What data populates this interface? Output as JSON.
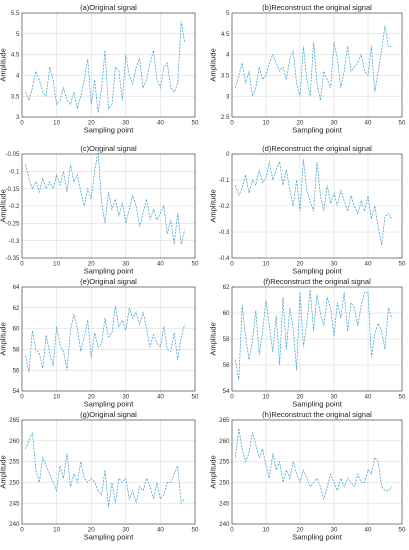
{
  "style": {
    "line_color": "#3d9fd0",
    "grid": true
  },
  "chart_data": [
    {
      "type": "line",
      "title": "(a)Original signal",
      "xlabel": "Sampling point",
      "ylabel": "Amplitude",
      "xlim": [
        0,
        50
      ],
      "ylim": [
        3,
        5.5
      ],
      "xticks": [
        "0",
        "10",
        "20",
        "30",
        "40",
        "50"
      ],
      "yticks": [
        "3",
        "3.5",
        "4",
        "4.5",
        "5",
        "5.5"
      ],
      "x": [
        1,
        2,
        3,
        4,
        5,
        6,
        7,
        8,
        9,
        10,
        11,
        12,
        13,
        14,
        15,
        16,
        17,
        18,
        19,
        20,
        21,
        22,
        23,
        24,
        25,
        26,
        27,
        28,
        29,
        30,
        31,
        32,
        33,
        34,
        35,
        36,
        37,
        38,
        39,
        40,
        41,
        42,
        43,
        44,
        45,
        46,
        47
      ],
      "y": [
        3.6,
        3.4,
        3.7,
        4.1,
        3.9,
        3.6,
        3.5,
        4.2,
        3.9,
        3.3,
        3.4,
        3.7,
        3.4,
        3.3,
        3.6,
        3.2,
        3.5,
        3.9,
        4.4,
        3.3,
        3.9,
        3.1,
        3.7,
        4.6,
        3.2,
        3.3,
        4.2,
        4.1,
        3.4,
        4.5,
        4.0,
        3.8,
        4.2,
        4.4,
        3.7,
        3.9,
        4.3,
        4.6,
        3.9,
        3.7,
        4.2,
        4.3,
        3.7,
        3.6,
        3.8,
        5.3,
        4.8
      ]
    },
    {
      "type": "line",
      "title": "(b)Reconstruct the original signal",
      "xlabel": "Sampling point",
      "ylabel": "Amplitude",
      "xlim": [
        0,
        50
      ],
      "ylim": [
        2.5,
        5
      ],
      "xticks": [
        "0",
        "10",
        "20",
        "30",
        "40",
        "50"
      ],
      "yticks": [
        "2.5",
        "3",
        "3.5",
        "4",
        "4.5",
        "5"
      ],
      "x": [
        1,
        2,
        3,
        4,
        5,
        6,
        7,
        8,
        9,
        10,
        11,
        12,
        13,
        14,
        15,
        16,
        17,
        18,
        19,
        20,
        21,
        22,
        23,
        24,
        25,
        26,
        27,
        28,
        29,
        30,
        31,
        32,
        33,
        34,
        35,
        36,
        37,
        38,
        39,
        40,
        41,
        42,
        43,
        44,
        45,
        46,
        47
      ],
      "y": [
        3.2,
        3.5,
        3.8,
        3.3,
        3.6,
        3.0,
        3.2,
        3.7,
        3.4,
        3.5,
        3.8,
        4.0,
        3.8,
        3.6,
        3.7,
        3.4,
        3.9,
        4.1,
        3.3,
        3.0,
        4.2,
        3.4,
        3.0,
        4.3,
        3.3,
        2.9,
        3.6,
        3.4,
        3.2,
        4.3,
        3.9,
        3.2,
        3.6,
        4.2,
        3.6,
        3.7,
        3.8,
        4.0,
        3.6,
        3.5,
        4.2,
        3.1,
        3.6,
        4.1,
        4.7,
        4.2,
        4.2
      ]
    },
    {
      "type": "line",
      "title": "(c)Original signal",
      "xlabel": "Sampling point",
      "ylabel": "Amplitude",
      "xlim": [
        0,
        50
      ],
      "ylim": [
        -0.35,
        -0.05
      ],
      "xticks": [
        "0",
        "10",
        "20",
        "30",
        "40",
        "50"
      ],
      "yticks": [
        "-0.35",
        "-0.3",
        "-0.25",
        "-0.2",
        "-0.15",
        "-0.1",
        "-0.05"
      ],
      "x": [
        1,
        2,
        3,
        4,
        5,
        6,
        7,
        8,
        9,
        10,
        11,
        12,
        13,
        14,
        15,
        16,
        17,
        18,
        19,
        20,
        21,
        22,
        23,
        24,
        25,
        26,
        27,
        28,
        29,
        30,
        31,
        32,
        33,
        34,
        35,
        36,
        37,
        38,
        39,
        40,
        41,
        42,
        43,
        44,
        45,
        46,
        47
      ],
      "y": [
        -0.08,
        -0.12,
        -0.15,
        -0.13,
        -0.16,
        -0.12,
        -0.15,
        -0.13,
        -0.15,
        -0.11,
        -0.14,
        -0.1,
        -0.16,
        -0.08,
        -0.13,
        -0.11,
        -0.16,
        -0.2,
        -0.15,
        -0.18,
        -0.1,
        -0.04,
        -0.19,
        -0.25,
        -0.16,
        -0.21,
        -0.18,
        -0.23,
        -0.19,
        -0.25,
        -0.21,
        -0.17,
        -0.2,
        -0.26,
        -0.22,
        -0.18,
        -0.24,
        -0.21,
        -0.24,
        -0.22,
        -0.2,
        -0.28,
        -0.24,
        -0.31,
        -0.22,
        -0.31,
        -0.27
      ]
    },
    {
      "type": "line",
      "title": "(d)Reconstruct the original signal",
      "xlabel": "Sampling point",
      "ylabel": "Amplitude",
      "xlim": [
        0,
        50
      ],
      "ylim": [
        -0.4,
        0
      ],
      "xticks": [
        "0",
        "10",
        "20",
        "30",
        "40",
        "50"
      ],
      "yticks": [
        "-0.4",
        "-0.3",
        "-0.2",
        "-0.1",
        "0"
      ],
      "x": [
        1,
        2,
        3,
        4,
        5,
        6,
        7,
        8,
        9,
        10,
        11,
        12,
        13,
        14,
        15,
        16,
        17,
        18,
        19,
        20,
        21,
        22,
        23,
        24,
        25,
        26,
        27,
        28,
        29,
        30,
        31,
        32,
        33,
        34,
        35,
        36,
        37,
        38,
        39,
        40,
        41,
        42,
        43,
        44,
        45,
        46,
        47
      ],
      "y": [
        -0.12,
        -0.16,
        -0.13,
        -0.08,
        -0.15,
        -0.1,
        -0.12,
        -0.06,
        -0.11,
        -0.09,
        -0.03,
        -0.1,
        -0.06,
        -0.03,
        -0.12,
        -0.06,
        -0.14,
        -0.2,
        -0.1,
        -0.22,
        -0.02,
        -0.14,
        -0.18,
        -0.22,
        -0.03,
        -0.16,
        -0.22,
        -0.12,
        -0.19,
        -0.15,
        -0.2,
        -0.14,
        -0.18,
        -0.22,
        -0.16,
        -0.2,
        -0.23,
        -0.18,
        -0.22,
        -0.16,
        -0.25,
        -0.2,
        -0.28,
        -0.35,
        -0.24,
        -0.23,
        -0.25
      ]
    },
    {
      "type": "line",
      "title": "(e)Original signal",
      "xlabel": "Sampling point",
      "ylabel": "Amplitude",
      "xlim": [
        0,
        50
      ],
      "ylim": [
        54,
        64
      ],
      "xticks": [
        "0",
        "10",
        "20",
        "30",
        "40",
        "50"
      ],
      "yticks": [
        "54",
        "56",
        "58",
        "60",
        "62",
        "64"
      ],
      "x": [
        1,
        2,
        3,
        4,
        5,
        6,
        7,
        8,
        9,
        10,
        11,
        12,
        13,
        14,
        15,
        16,
        17,
        18,
        19,
        20,
        21,
        22,
        23,
        24,
        25,
        26,
        27,
        28,
        29,
        30,
        31,
        32,
        33,
        34,
        35,
        36,
        37,
        38,
        39,
        40,
        41,
        42,
        43,
        44,
        45,
        46,
        47
      ],
      "y": [
        57.4,
        55.8,
        59.8,
        58.0,
        57.6,
        56.2,
        59.4,
        57.6,
        56.4,
        60.2,
        58.4,
        57.8,
        56.0,
        59.8,
        61.4,
        60.0,
        57.8,
        59.2,
        60.8,
        57.2,
        59.6,
        58.2,
        58.6,
        61.0,
        59.2,
        59.6,
        62.2,
        60.2,
        60.8,
        59.8,
        62.0,
        61.0,
        61.6,
        60.4,
        61.6,
        60.0,
        58.2,
        59.4,
        58.6,
        58.2,
        60.2,
        58.0,
        57.8,
        59.6,
        57.0,
        59.2,
        60.4
      ]
    },
    {
      "type": "line",
      "title": "(f)Reconstruct the original signal",
      "xlabel": "Sampling point",
      "ylabel": "Amplitude",
      "xlim": [
        0,
        50
      ],
      "ylim": [
        54,
        62
      ],
      "xticks": [
        "0",
        "10",
        "20",
        "30",
        "40",
        "50"
      ],
      "yticks": [
        "54",
        "56",
        "58",
        "60",
        "62"
      ],
      "x": [
        1,
        2,
        3,
        4,
        5,
        6,
        7,
        8,
        9,
        10,
        11,
        12,
        13,
        14,
        15,
        16,
        17,
        18,
        19,
        20,
        21,
        22,
        23,
        24,
        25,
        26,
        27,
        28,
        29,
        30,
        31,
        32,
        33,
        34,
        35,
        36,
        37,
        38,
        39,
        40,
        41,
        42,
        43,
        44,
        45,
        46,
        47
      ],
      "y": [
        56.4,
        54.8,
        60.6,
        58.2,
        56.4,
        57.8,
        60.2,
        56.8,
        58.6,
        61.0,
        59.0,
        57.0,
        59.8,
        56.0,
        61.2,
        57.2,
        60.4,
        58.8,
        55.6,
        61.6,
        57.4,
        59.2,
        61.8,
        58.6,
        61.4,
        60.0,
        59.0,
        61.2,
        60.4,
        58.2,
        60.8,
        59.6,
        61.6,
        58.6,
        60.8,
        60.4,
        59.0,
        60.6,
        61.6,
        61.6,
        56.6,
        58.4,
        59.2,
        58.6,
        57.2,
        60.4,
        59.6
      ]
    },
    {
      "type": "line",
      "title": "(g)Original signal",
      "xlabel": "Sampling point",
      "ylabel": "Amplitude",
      "xlim": [
        0,
        50
      ],
      "ylim": [
        240,
        265
      ],
      "xticks": [
        "0",
        "10",
        "20",
        "30",
        "40",
        "50"
      ],
      "yticks": [
        "240",
        "245",
        "250",
        "255",
        "260",
        "265"
      ],
      "x": [
        1,
        2,
        3,
        4,
        5,
        6,
        7,
        8,
        9,
        10,
        11,
        12,
        13,
        14,
        15,
        16,
        17,
        18,
        19,
        20,
        21,
        22,
        23,
        24,
        25,
        26,
        27,
        28,
        29,
        30,
        31,
        32,
        33,
        34,
        35,
        36,
        37,
        38,
        39,
        40,
        41,
        42,
        43,
        44,
        45,
        46,
        47
      ],
      "y": [
        258,
        260,
        262,
        253,
        250,
        256,
        254,
        252,
        250,
        248,
        254,
        251,
        257,
        249,
        252,
        250,
        255,
        251,
        250,
        251,
        250,
        248,
        247,
        253,
        244,
        250,
        245,
        251,
        250,
        251,
        246,
        248,
        245,
        249,
        248,
        251,
        249,
        246,
        250,
        246,
        247,
        250,
        250,
        252,
        254,
        245,
        246
      ]
    },
    {
      "type": "line",
      "title": "(h)Reconstruct the original signal",
      "xlabel": "Sampling point",
      "ylabel": "Amplitude",
      "xlim": [
        0,
        50
      ],
      "ylim": [
        240,
        265
      ],
      "xticks": [
        "0",
        "10",
        "20",
        "30",
        "40",
        "50"
      ],
      "yticks": [
        "240",
        "245",
        "250",
        "255",
        "260",
        "265"
      ],
      "x": [
        1,
        2,
        3,
        4,
        5,
        6,
        7,
        8,
        9,
        10,
        11,
        12,
        13,
        14,
        15,
        16,
        17,
        18,
        19,
        20,
        21,
        22,
        23,
        24,
        25,
        26,
        27,
        28,
        29,
        30,
        31,
        32,
        33,
        34,
        35,
        36,
        37,
        38,
        39,
        40,
        41,
        42,
        43,
        44,
        45,
        46,
        47
      ],
      "y": [
        256,
        263,
        258,
        255,
        257,
        262,
        259,
        256,
        258,
        254,
        251,
        257,
        253,
        255,
        250,
        253,
        251,
        255,
        252,
        250,
        253,
        251,
        249,
        250,
        251,
        249,
        246,
        249,
        252,
        250,
        248,
        251,
        249,
        251,
        250,
        249,
        252,
        250,
        250,
        253,
        252,
        256,
        255,
        249,
        248,
        248,
        249
      ]
    }
  ]
}
